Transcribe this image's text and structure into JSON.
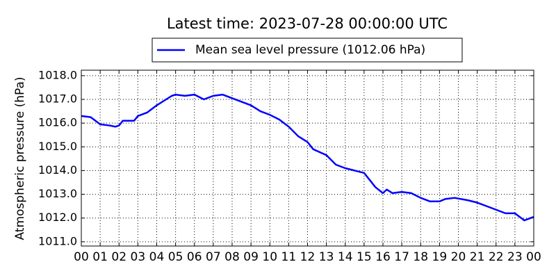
{
  "chart_data": {
    "type": "line",
    "title": "Latest time: 2023-07-28 00:00:00 UTC",
    "y_label": "Atmospheric pressure (hPa)",
    "x": [
      0,
      0.5,
      1.0,
      1.5,
      1.8,
      2.0,
      2.2,
      2.5,
      2.8,
      3.0,
      3.5,
      4.0,
      4.5,
      4.8,
      5.0,
      5.5,
      6.0,
      6.5,
      7.0,
      7.5,
      8.0,
      8.5,
      9.0,
      9.5,
      10.0,
      10.5,
      11.0,
      11.5,
      12.0,
      12.3,
      13.0,
      13.5,
      14.0,
      14.5,
      15.0,
      15.3,
      15.6,
      16.0,
      16.2,
      16.5,
      17.0,
      17.5,
      18.0,
      18.5,
      19.0,
      19.3,
      19.8,
      20.5,
      21.0,
      21.5,
      22.0,
      22.5,
      23.0,
      23.5,
      24.0
    ],
    "series": [
      {
        "name": "Mean sea level pressure (1012.06 hPa)",
        "color": "#0000ff",
        "values": [
          1016.3,
          1016.25,
          1015.95,
          1015.9,
          1015.85,
          1015.9,
          1016.1,
          1016.1,
          1016.1,
          1016.3,
          1016.45,
          1016.75,
          1017.0,
          1017.15,
          1017.2,
          1017.15,
          1017.2,
          1017.0,
          1017.15,
          1017.2,
          1017.05,
          1016.9,
          1016.75,
          1016.5,
          1016.35,
          1016.15,
          1015.85,
          1015.45,
          1015.2,
          1014.9,
          1014.65,
          1014.25,
          1014.1,
          1014.0,
          1013.9,
          1013.6,
          1013.3,
          1013.05,
          1013.2,
          1013.05,
          1013.1,
          1013.05,
          1012.85,
          1012.7,
          1012.7,
          1012.8,
          1012.85,
          1012.75,
          1012.65,
          1012.5,
          1012.35,
          1012.2,
          1012.2,
          1011.9,
          1012.05
        ]
      }
    ],
    "xlim": [
      0,
      24
    ],
    "xticks": [
      {
        "value": 0,
        "label": "00"
      },
      {
        "value": 1,
        "label": "01"
      },
      {
        "value": 2,
        "label": "02"
      },
      {
        "value": 3,
        "label": "03"
      },
      {
        "value": 4,
        "label": "04"
      },
      {
        "value": 5,
        "label": "05"
      },
      {
        "value": 6,
        "label": "06"
      },
      {
        "value": 7,
        "label": "07"
      },
      {
        "value": 8,
        "label": "08"
      },
      {
        "value": 9,
        "label": "09"
      },
      {
        "value": 10,
        "label": "10"
      },
      {
        "value": 11,
        "label": "11"
      },
      {
        "value": 12,
        "label": "12"
      },
      {
        "value": 13,
        "label": "13"
      },
      {
        "value": 14,
        "label": "14"
      },
      {
        "value": 15,
        "label": "15"
      },
      {
        "value": 16,
        "label": "16"
      },
      {
        "value": 17,
        "label": "17"
      },
      {
        "value": 18,
        "label": "18"
      },
      {
        "value": 19,
        "label": "19"
      },
      {
        "value": 20,
        "label": "20"
      },
      {
        "value": 21,
        "label": "21"
      },
      {
        "value": 22,
        "label": "22"
      },
      {
        "value": 23,
        "label": "23"
      },
      {
        "value": 24,
        "label": "00"
      }
    ],
    "ylim": [
      1010.82,
      1018.23
    ],
    "yticks": [
      {
        "value": 1011,
        "label": "1011.0"
      },
      {
        "value": 1012,
        "label": "1012.0"
      },
      {
        "value": 1013,
        "label": "1013.0"
      },
      {
        "value": 1014,
        "label": "1014.0"
      },
      {
        "value": 1015,
        "label": "1015.0"
      },
      {
        "value": 1016,
        "label": "1016.0"
      },
      {
        "value": 1017,
        "label": "1017.0"
      },
      {
        "value": 1018,
        "label": "1018.0"
      }
    ],
    "grid": true,
    "legend": "top"
  }
}
